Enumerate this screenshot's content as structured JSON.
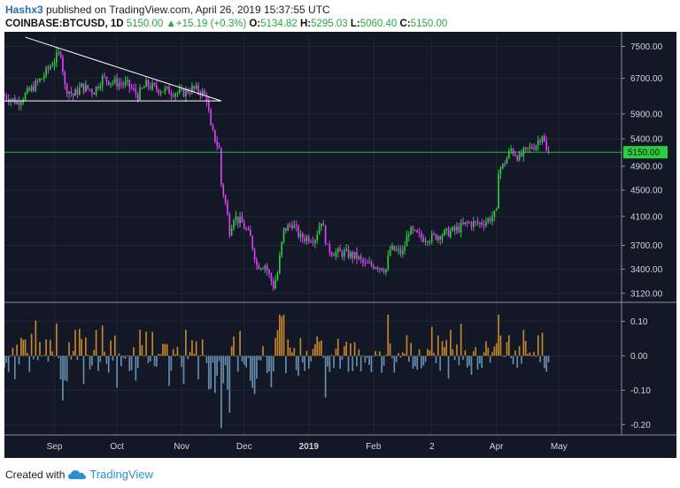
{
  "header": {
    "user": "Hashx3",
    "published_text": "published on TradingView.com, April 26, 2019 15:37:55 UTC",
    "symbol": "COINBASE:BTCUSD, 1D",
    "last": "5150.00",
    "change_arrow": "up-triangle-icon",
    "change": "+15.19 (+0.3%)",
    "o_label": "O:",
    "o_value": "5134.82",
    "h_label": "H:",
    "h_value": "5295.03",
    "l_label": "L:",
    "l_value": "5060.40",
    "c_label": "C:",
    "c_value": "5150.00"
  },
  "footer": {
    "created_with": "Created with",
    "brand": "TradingView",
    "logo_icon": "tradingview-cloud-icon"
  },
  "colors": {
    "background": "#121826",
    "up_candle": "#2ecc40",
    "down_candle": "#e040fb",
    "hist_positive": "#c8862a",
    "hist_negative": "#6a8fae",
    "price_line": "#2ecc40",
    "trendline": "#ffffff",
    "grid": "#1e2536",
    "axis_text": "#d0d4dc"
  },
  "chart_data": [
    {
      "type": "candlestick",
      "title": "",
      "y_ticks": [
        7500,
        6700,
        5900,
        5400,
        4900,
        4500,
        4100,
        3700,
        3400,
        3120
      ],
      "y_tick_labels": [
        "7500.00",
        "6700.00",
        "5900.00",
        "5400.00",
        "4900.00",
        "4500.00",
        "4100.00",
        "3700.00",
        "3400.00",
        "3120.00"
      ],
      "ylim": [
        3050,
        7800
      ],
      "y_scale": "log",
      "current_price_label": "5150.00",
      "current_price": 5150,
      "x_labels": [
        "Sep",
        "Oct",
        "Nov",
        "Dec",
        "2019",
        "Feb",
        "2",
        "Apr",
        "May"
      ],
      "x_label_positions": [
        "2018-09-01",
        "2018-10-01",
        "2018-11-01",
        "2018-12-01",
        "2019-01-01",
        "2019-02-01",
        "2019-03-01",
        "2019-04-01",
        "2019-05-01"
      ],
      "x_range": [
        "2018-08-08",
        "2019-05-31"
      ],
      "close_path": [
        [
          "2018-08-08",
          6300
        ],
        [
          "2018-08-14",
          6150
        ],
        [
          "2018-08-20",
          6400
        ],
        [
          "2018-08-26",
          6700
        ],
        [
          "2018-08-30",
          7000
        ],
        [
          "2018-09-04",
          7350
        ],
        [
          "2018-09-06",
          6500
        ],
        [
          "2018-09-10",
          6300
        ],
        [
          "2018-09-14",
          6500
        ],
        [
          "2018-09-20",
          6400
        ],
        [
          "2018-09-24",
          6700
        ],
        [
          "2018-09-30",
          6600
        ],
        [
          "2018-10-06",
          6550
        ],
        [
          "2018-10-11",
          6300
        ],
        [
          "2018-10-15",
          6550
        ],
        [
          "2018-10-20",
          6450
        ],
        [
          "2018-10-26",
          6400
        ],
        [
          "2018-11-01",
          6350
        ],
        [
          "2018-11-06",
          6450
        ],
        [
          "2018-11-10",
          6400
        ],
        [
          "2018-11-13",
          6250
        ],
        [
          "2018-11-15",
          5600
        ],
        [
          "2018-11-19",
          5200
        ],
        [
          "2018-11-20",
          4600
        ],
        [
          "2018-11-22",
          4300
        ],
        [
          "2018-11-24",
          3900
        ],
        [
          "2018-11-26",
          4100
        ],
        [
          "2018-11-30",
          4000
        ],
        [
          "2018-12-04",
          3800
        ],
        [
          "2018-12-07",
          3450
        ],
        [
          "2018-12-11",
          3450
        ],
        [
          "2018-12-15",
          3200
        ],
        [
          "2018-12-17",
          3350
        ],
        [
          "2018-12-20",
          3900
        ],
        [
          "2018-12-24",
          4000
        ],
        [
          "2018-12-28",
          3800
        ],
        [
          "2019-01-04",
          3800
        ],
        [
          "2019-01-07",
          4050
        ],
        [
          "2019-01-10",
          3650
        ],
        [
          "2019-01-14",
          3600
        ],
        [
          "2019-01-18",
          3600
        ],
        [
          "2019-01-24",
          3550
        ],
        [
          "2019-01-28",
          3450
        ],
        [
          "2019-02-02",
          3450
        ],
        [
          "2019-02-07",
          3400
        ],
        [
          "2019-02-09",
          3650
        ],
        [
          "2019-02-15",
          3600
        ],
        [
          "2019-02-18",
          3900
        ],
        [
          "2019-02-24",
          3800
        ],
        [
          "2019-02-28",
          3800
        ],
        [
          "2019-03-06",
          3850
        ],
        [
          "2019-03-12",
          3900
        ],
        [
          "2019-03-18",
          4000
        ],
        [
          "2019-03-24",
          4000
        ],
        [
          "2019-03-28",
          4050
        ],
        [
          "2019-04-01",
          4150
        ],
        [
          "2019-04-02",
          4850
        ],
        [
          "2019-04-04",
          4900
        ],
        [
          "2019-04-08",
          5200
        ],
        [
          "2019-04-12",
          5050
        ],
        [
          "2019-04-16",
          5200
        ],
        [
          "2019-04-20",
          5300
        ],
        [
          "2019-04-23",
          5500
        ],
        [
          "2019-04-25",
          5150
        ],
        [
          "2019-04-26",
          5150
        ]
      ],
      "trendline": [
        [
          "2018-08-18",
          7750
        ],
        [
          "2018-11-20",
          6180
        ]
      ],
      "support_line": [
        [
          "2018-08-08",
          6180
        ],
        [
          "2018-11-20",
          6180
        ]
      ]
    },
    {
      "type": "histogram",
      "title": "",
      "y_ticks": [
        0.1,
        0.0,
        -0.1,
        -0.2
      ],
      "y_tick_labels": [
        "0.10",
        "0.00",
        "-0.10",
        "-0.20"
      ],
      "ylim": [
        -0.23,
        0.135
      ]
    }
  ]
}
